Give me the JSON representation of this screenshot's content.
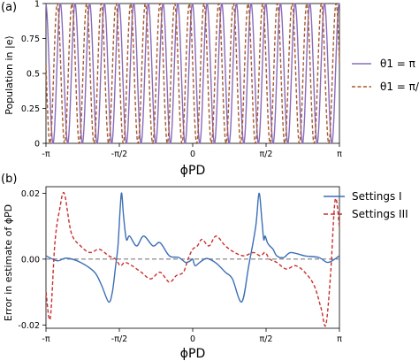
{
  "chart_data": [
    {
      "panel_label": "(a)",
      "type": "line",
      "xlabel": "ϕPD",
      "ylabel": "Population in |e⟩",
      "xlim": [
        -3.1416,
        3.1416
      ],
      "ylim": [
        0,
        1
      ],
      "xticks": [
        {
          "value": -3.1416,
          "label": "-π"
        },
        {
          "value": -1.5708,
          "label": "-π/2"
        },
        {
          "value": 0,
          "label": "0"
        },
        {
          "value": 1.5708,
          "label": "π/2"
        },
        {
          "value": 3.1416,
          "label": "π"
        }
      ],
      "yticks": [
        {
          "value": 0,
          "label": "0"
        },
        {
          "value": 0.25,
          "label": "0.25"
        },
        {
          "value": 0.5,
          "label": "0.5"
        },
        {
          "value": 0.75,
          "label": "0.75"
        },
        {
          "value": 1,
          "label": "1"
        }
      ],
      "grid": false,
      "legend_position": "outside-right",
      "series": [
        {
          "name": "θ1 = π",
          "color": "#8a6bbd",
          "dash": "solid",
          "model": "population = cos²(k·ϕPD/2 + phase)",
          "k": 20,
          "phase": 0.06
        },
        {
          "name": "θ1 = π/2",
          "color": "#a65a2e",
          "dash": "dashed",
          "model": "population = cos²(k·ϕPD/2 + phase)",
          "k": 20,
          "phase": 0.72
        }
      ]
    },
    {
      "panel_label": "(b)",
      "type": "line",
      "xlabel": "ϕPD",
      "ylabel": "Error in estimate of ϕPD",
      "xlim": [
        -3.1416,
        3.1416
      ],
      "ylim": [
        -0.021,
        0.022
      ],
      "xticks": [
        {
          "value": -3.1416,
          "label": "-π"
        },
        {
          "value": -1.5708,
          "label": "-π/2"
        },
        {
          "value": 0,
          "label": "0"
        },
        {
          "value": 1.5708,
          "label": "π/2"
        },
        {
          "value": 3.1416,
          "label": "π"
        }
      ],
      "yticks": [
        {
          "value": -0.02,
          "label": "-0.02"
        },
        {
          "value": 0,
          "label": "0.00"
        },
        {
          "value": 0.02,
          "label": "0.02"
        }
      ],
      "grid": false,
      "legend_position": "outside-right",
      "reference_line": {
        "y": 0,
        "color": "#7f7f7f",
        "dash": "dashed"
      },
      "series": [
        {
          "name": "Settings I",
          "color": "#3b6fb6",
          "dash": "solid",
          "x": [
            -3.14,
            -2.9,
            -2.7,
            -2.4,
            -2.1,
            -1.95,
            -1.8,
            -1.72,
            -1.65,
            -1.6,
            -1.55,
            -1.52,
            -1.48,
            -1.42,
            -1.35,
            -1.2,
            -1.05,
            -0.85,
            -0.7,
            -0.5,
            -0.3,
            -0.15,
            -0.05,
            0.0,
            0.05,
            0.15,
            0.3,
            0.5,
            0.7,
            0.85,
            1.05,
            1.2,
            1.35,
            1.42,
            1.48,
            1.52,
            1.55,
            1.6,
            1.65,
            1.72,
            1.8,
            1.95,
            2.1,
            2.4,
            2.7,
            2.9,
            3.14
          ],
          "y": [
            0.001,
            -0.0005,
            0.0003,
            -0.001,
            -0.004,
            -0.008,
            -0.013,
            -0.01,
            -0.002,
            0.004,
            0.016,
            0.02,
            0.013,
            0.006,
            0.007,
            0.004,
            0.007,
            0.004,
            0.005,
            0.001,
            0.0005,
            -0.001,
            -0.0005,
            0.0,
            -0.002,
            -0.001,
            0.0002,
            -0.0012,
            -0.004,
            -0.006,
            -0.013,
            -0.002,
            0.01,
            0.02,
            0.012,
            0.006,
            0.007,
            0.005,
            0.004,
            0.003,
            0.001,
            0.0005,
            0.002,
            0.001,
            0.0005,
            -0.001,
            0.001
          ]
        },
        {
          "name": "Settings III",
          "color": "#c9302c",
          "dash": "dashed",
          "x": [
            -3.14,
            -3.05,
            -2.95,
            -2.85,
            -2.75,
            -2.6,
            -2.4,
            -2.2,
            -2.0,
            -1.8,
            -1.65,
            -1.55,
            -1.45,
            -1.3,
            -1.1,
            -0.9,
            -0.7,
            -0.5,
            -0.35,
            -0.2,
            -0.1,
            0.0,
            0.1,
            0.2,
            0.35,
            0.5,
            0.7,
            0.9,
            1.1,
            1.3,
            1.45,
            1.55,
            1.65,
            1.8,
            2.0,
            2.2,
            2.4,
            2.6,
            2.75,
            2.85,
            2.95,
            3.05,
            3.14
          ],
          "y": [
            -0.01,
            -0.018,
            0.005,
            0.015,
            0.02,
            0.008,
            0.004,
            0.002,
            0.003,
            0.001,
            0.0,
            -0.002,
            -0.001,
            -0.002,
            -0.004,
            -0.006,
            -0.004,
            -0.007,
            -0.005,
            -0.004,
            0.0,
            0.003,
            0.004,
            0.006,
            0.004,
            0.007,
            0.004,
            0.002,
            0.001,
            0.002,
            0.001,
            0.002,
            0.0,
            -0.001,
            -0.003,
            -0.002,
            -0.004,
            -0.008,
            -0.015,
            -0.02,
            -0.005,
            0.018,
            0.01
          ]
        }
      ]
    }
  ]
}
